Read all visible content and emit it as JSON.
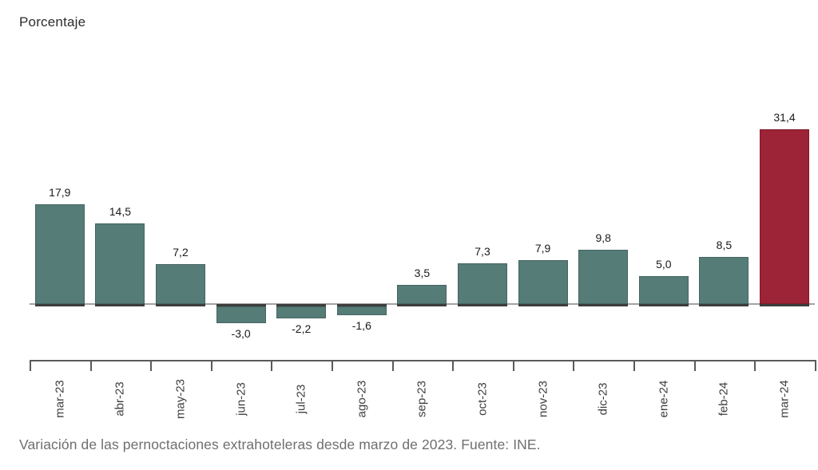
{
  "chart_data": {
    "type": "bar",
    "title": "Porcentaje",
    "caption": "Variación de las pernoctaciones extrahoteleras desde marzo de 2023. Fuente: INE.",
    "categories": [
      "mar-23",
      "abr-23",
      "may-23",
      "jun-23",
      "jul-23",
      "ago-23",
      "sep-23",
      "oct-23",
      "nov-23",
      "dic-23",
      "ene-24",
      "feb-24",
      "mar-24"
    ],
    "values": [
      17.9,
      14.5,
      7.2,
      -3.0,
      -2.2,
      -1.6,
      3.5,
      7.3,
      7.9,
      9.8,
      5.0,
      8.5,
      31.4
    ],
    "value_labels": [
      "17,9",
      "14,5",
      "7,2",
      "-3,0",
      "-2,2",
      "-1,6",
      "3,5",
      "7,3",
      "7,9",
      "9,8",
      "5,0",
      "8,5",
      "31,4"
    ],
    "xlabel": "",
    "ylabel": "Porcentaje",
    "ylim": [
      -5,
      33
    ],
    "grid": false,
    "legend_position": "none",
    "bar_color": "#557C77",
    "highlight_color": "#9D2337",
    "highlight_index": 12,
    "axis_color": "#5a5a5a",
    "baseline_color": "#a3a3a3"
  }
}
